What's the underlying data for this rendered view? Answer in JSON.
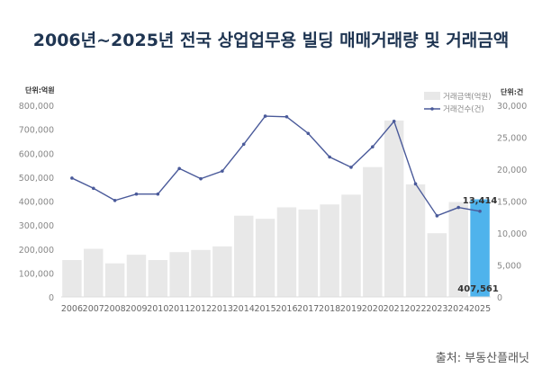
{
  "chart_data": {
    "type": "bar",
    "title": "2006년~2025년 전국 상업업무용 빌딩 매매거래량 및 거래금액",
    "source": "출처: 부동산플래닛",
    "left_unit": "단위:억원",
    "right_unit": "단위:건",
    "categories": [
      "2006",
      "2007",
      "2008",
      "2009",
      "2010",
      "2011",
      "2012",
      "2013",
      "2014",
      "2015",
      "2016",
      "2017",
      "2018",
      "2019",
      "2020",
      "2021",
      "2022",
      "2023",
      "2024",
      "2025"
    ],
    "left_ylim": [
      0,
      800000
    ],
    "left_ticks": [
      "0",
      "100,000",
      "200,000",
      "300,000",
      "400,000",
      "500,000",
      "600,000",
      "700,000",
      "800,000"
    ],
    "right_ylim": [
      0,
      30000
    ],
    "right_ticks": [
      "0",
      "5,000",
      "10,000",
      "15,000",
      "20,000",
      "25,000",
      "30,000"
    ],
    "legend_position": "top-right",
    "grid": false,
    "series": [
      {
        "name": "거래금액(억원)",
        "type": "bar",
        "axis": "left",
        "color": "#e8e8e8",
        "highlight_color": "#4fb3ec",
        "values": [
          154000,
          201000,
          140000,
          176000,
          154000,
          187000,
          196000,
          211000,
          339000,
          326000,
          374000,
          365000,
          386000,
          427000,
          542000,
          736000,
          470000,
          266000,
          396000,
          407561
        ]
      },
      {
        "name": "거래건수(건)",
        "type": "line",
        "axis": "right",
        "color": "#4a5a9a",
        "values": [
          18600,
          17000,
          15100,
          16100,
          16100,
          20100,
          18500,
          19700,
          23900,
          28300,
          28200,
          25600,
          21900,
          20300,
          23500,
          27500,
          17700,
          12700,
          14000,
          13414
        ]
      }
    ],
    "annotations": [
      "13,414",
      "407,561"
    ]
  }
}
